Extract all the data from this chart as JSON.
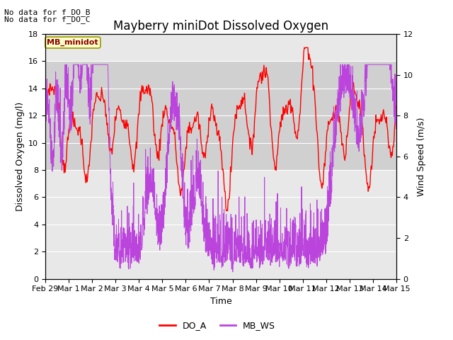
{
  "title": "Mayberry miniDot Dissolved Oxygen",
  "xlabel": "Time",
  "ylabel_left": "Dissolved Oxygen (mg/l)",
  "ylabel_right": "Wind Speed (m/s)",
  "ylim_left": [
    0,
    18
  ],
  "ylim_right": [
    0,
    12
  ],
  "xticklabels": [
    "Feb 29",
    "Mar 1",
    "Mar 2",
    "Mar 3",
    "Mar 4",
    "Mar 5",
    "Mar 6",
    "Mar 7",
    "Mar 8",
    "Mar 9",
    "Mar 10",
    "Mar 11",
    "Mar 12",
    "Mar 13",
    "Mar 14",
    "Mar 15"
  ],
  "annotation_lines": [
    "No data for f_DO_B",
    "No data for f_DO_C"
  ],
  "legend_box_label": "MB_minidot",
  "legend_entries": [
    "DO_A",
    "MB_WS"
  ],
  "do_color": "red",
  "ws_color": "#BB44DD",
  "bg_band_ylim": [
    8,
    16
  ],
  "bg_color": "#e8e8e8",
  "bg_band_color": "#d0d0d0",
  "white_lines": [
    0,
    2,
    4,
    6,
    8,
    10,
    12,
    14,
    16,
    18
  ],
  "title_fontsize": 12,
  "axis_fontsize": 9,
  "tick_fontsize": 8,
  "annotation_fontsize": 8
}
